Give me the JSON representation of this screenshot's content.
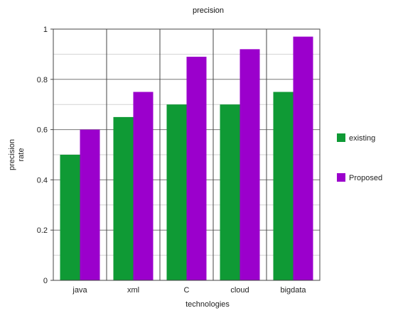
{
  "chart_data": {
    "type": "bar",
    "title": "precision",
    "xlabel": "technologies",
    "ylabel_lines": [
      "precision",
      "rate"
    ],
    "categories": [
      "java",
      "xml",
      "C",
      "cloud",
      "bigdata"
    ],
    "series": [
      {
        "name": "existing",
        "color": "#0f9a35",
        "values": [
          0.5,
          0.65,
          0.7,
          0.7,
          0.75
        ]
      },
      {
        "name": "Proposed",
        "color": "#9b00cc",
        "values": [
          0.6,
          0.75,
          0.89,
          0.92,
          0.97
        ]
      }
    ],
    "ylim": [
      0,
      1
    ],
    "yticks": [
      "0",
      "0.2",
      "0.4",
      "0.6",
      "0.8",
      "1"
    ],
    "grid": true,
    "legend_position": "right"
  }
}
